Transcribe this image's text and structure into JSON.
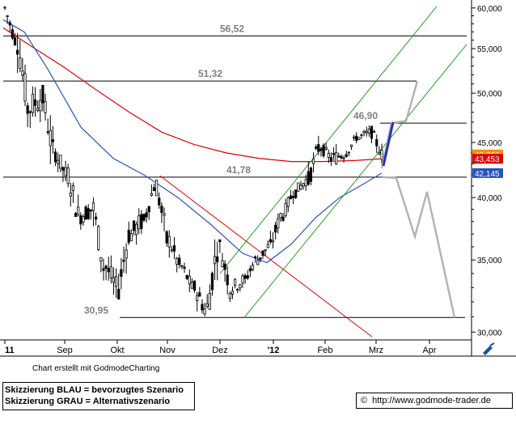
{
  "chart_data": {
    "type": "candlestick",
    "x_tick_labels": [
      "11",
      "Sep",
      "Okt",
      "Nov",
      "Dez",
      "'12",
      "Feb",
      "Mrz",
      "Apr"
    ],
    "y_ticks": [
      "30,000",
      "35,000",
      "40,000",
      "45,000",
      "50,000",
      "55,000",
      "60,000"
    ],
    "ylim": [
      29.5,
      60.5
    ],
    "y_scale": "log",
    "horizontal_levels": [
      {
        "label": "56,52",
        "value": 56.52
      },
      {
        "label": "51,32",
        "value": 51.32
      },
      {
        "label": "46,90",
        "value": 46.9
      },
      {
        "label": "41,78",
        "value": 41.78
      },
      {
        "label": "30,95",
        "value": 30.95
      }
    ],
    "price_tags": [
      {
        "label": "43,866",
        "value": 43.866,
        "color": "#ff8c00"
      },
      {
        "label": "43,453",
        "value": 43.453,
        "color": "#e00000"
      },
      {
        "label": "42,145",
        "value": 42.145,
        "color": "#2a52be"
      }
    ],
    "ohlc_weekly_approx": [
      {
        "week": "Aug-1",
        "open": 60.0,
        "high": 60.5,
        "low": 55.5,
        "close": 56.0
      },
      {
        "week": "Aug-2",
        "open": 56.0,
        "high": 57.0,
        "low": 46.5,
        "close": 48.5
      },
      {
        "week": "Aug-3",
        "open": 48.5,
        "high": 51.5,
        "low": 43.0,
        "close": 49.5
      },
      {
        "week": "Aug-4",
        "open": 49.5,
        "high": 50.0,
        "low": 41.5,
        "close": 44.0
      },
      {
        "week": "Sep-1",
        "open": 44.0,
        "high": 45.5,
        "low": 40.5,
        "close": 42.0
      },
      {
        "week": "Sep-2",
        "open": 42.0,
        "high": 43.0,
        "low": 37.0,
        "close": 38.5
      },
      {
        "week": "Sep-3",
        "open": 38.5,
        "high": 40.5,
        "low": 36.0,
        "close": 39.0
      },
      {
        "week": "Sep-4",
        "open": 39.0,
        "high": 40.0,
        "low": 33.5,
        "close": 34.5
      },
      {
        "week": "Okt-1",
        "open": 34.5,
        "high": 35.5,
        "low": 30.95,
        "close": 33.0
      },
      {
        "week": "Okt-2",
        "open": 33.0,
        "high": 38.0,
        "low": 32.5,
        "close": 37.0
      },
      {
        "week": "Okt-3",
        "open": 37.0,
        "high": 40.0,
        "low": 35.0,
        "close": 38.0
      },
      {
        "week": "Okt-4",
        "open": 38.0,
        "high": 41.78,
        "low": 37.5,
        "close": 41.0
      },
      {
        "week": "Nov-1",
        "open": 41.0,
        "high": 41.5,
        "low": 35.0,
        "close": 36.5
      },
      {
        "week": "Nov-2",
        "open": 36.5,
        "high": 37.5,
        "low": 33.5,
        "close": 34.5
      },
      {
        "week": "Nov-3",
        "open": 34.5,
        "high": 35.5,
        "low": 32.5,
        "close": 33.0
      },
      {
        "week": "Nov-4",
        "open": 33.0,
        "high": 33.5,
        "low": 30.0,
        "close": 31.5
      },
      {
        "week": "Dez-1",
        "open": 31.5,
        "high": 37.0,
        "low": 30.5,
        "close": 36.0
      },
      {
        "week": "Dez-2",
        "open": 36.0,
        "high": 36.5,
        "low": 32.0,
        "close": 33.0
      },
      {
        "week": "Dez-3",
        "open": 33.0,
        "high": 34.0,
        "low": 31.0,
        "close": 33.5
      },
      {
        "week": "Dez-4",
        "open": 33.5,
        "high": 35.5,
        "low": 33.0,
        "close": 35.0
      },
      {
        "week": "Jan-1",
        "open": 35.0,
        "high": 36.5,
        "low": 34.0,
        "close": 36.0
      },
      {
        "week": "Jan-2",
        "open": 36.0,
        "high": 39.0,
        "low": 35.5,
        "close": 38.5
      },
      {
        "week": "Jan-3",
        "open": 38.5,
        "high": 41.0,
        "low": 38.0,
        "close": 40.5
      },
      {
        "week": "Jan-4",
        "open": 40.5,
        "high": 42.5,
        "low": 39.5,
        "close": 41.5
      },
      {
        "week": "Feb-1",
        "open": 41.5,
        "high": 46.0,
        "low": 41.0,
        "close": 44.5
      },
      {
        "week": "Feb-2",
        "open": 44.5,
        "high": 45.5,
        "low": 42.5,
        "close": 43.5
      },
      {
        "week": "Feb-3",
        "open": 43.5,
        "high": 45.0,
        "low": 41.0,
        "close": 44.0
      },
      {
        "week": "Feb-4",
        "open": 44.0,
        "high": 46.0,
        "low": 43.5,
        "close": 45.5
      },
      {
        "week": "Mrz-1",
        "open": 45.5,
        "high": 46.9,
        "low": 44.5,
        "close": 46.0
      },
      {
        "week": "Mrz-2",
        "open": 46.0,
        "high": 46.5,
        "low": 43.0,
        "close": 43.866
      }
    ],
    "colors": {
      "candle": "#000000",
      "level_line": "#000000",
      "moving_average_long": "#e00000",
      "moving_average_short": "#2a52be",
      "channel": "#22a022",
      "downtrend": "#e00000",
      "scenario_blue": "#2233bb",
      "scenario_gray": "#b4b4b4",
      "level_label": "#808080"
    }
  },
  "footer": {
    "credit": "Chart erstellt mit GodmodeCharting",
    "legend_blue": "Skizzierung BLAU = bevorzugtes Szenario",
    "legend_gray": "Skizzierung GRAU = Alternativszenario",
    "copyright_symbol": "©",
    "url": "http://www.godmode-trader.de"
  },
  "icons": {
    "corner": "pen-icon"
  }
}
